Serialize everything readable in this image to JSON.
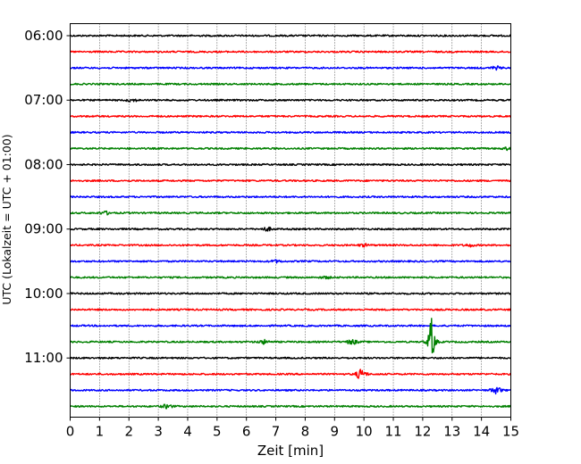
{
  "chart_data": {
    "type": "line",
    "title": "",
    "xlabel": "Zeit  [min]",
    "ylabel": "UTC (Lokalzeit = UTC + 01:00)",
    "xlim": [
      0,
      15
    ],
    "x_ticks": [
      0,
      1,
      2,
      3,
      4,
      5,
      6,
      7,
      8,
      9,
      10,
      11,
      12,
      13,
      14,
      15
    ],
    "y_tick_labels": [
      "06:00",
      "07:00",
      "08:00",
      "09:00",
      "10:00",
      "11:00"
    ],
    "grid": "vertical dotted at each minute",
    "trace_colors": [
      "#000000",
      "#ff0000",
      "#0000ff",
      "#008000"
    ],
    "traces": [
      {
        "start": "06:00",
        "events": []
      },
      {
        "start": "06:15",
        "events": []
      },
      {
        "start": "06:30",
        "events": [
          {
            "t": 14.5,
            "amp": 0.3
          }
        ]
      },
      {
        "start": "06:45",
        "events": []
      },
      {
        "start": "07:00",
        "events": [
          {
            "t": 2.1,
            "amp": 0.3
          }
        ]
      },
      {
        "start": "07:15",
        "events": []
      },
      {
        "start": "07:30",
        "events": []
      },
      {
        "start": "07:45",
        "events": [
          {
            "t": 14.9,
            "amp": 0.25
          }
        ]
      },
      {
        "start": "08:00",
        "events": []
      },
      {
        "start": "08:15",
        "events": []
      },
      {
        "start": "08:30",
        "events": []
      },
      {
        "start": "08:45",
        "events": [
          {
            "t": 1.2,
            "amp": 0.3
          }
        ]
      },
      {
        "start": "09:00",
        "events": [
          {
            "t": 6.7,
            "amp": 0.35
          }
        ]
      },
      {
        "start": "09:15",
        "events": [
          {
            "t": 10.0,
            "amp": 0.25
          },
          {
            "t": 13.6,
            "amp": 0.25
          }
        ]
      },
      {
        "start": "09:30",
        "events": [
          {
            "t": 7.0,
            "amp": 0.25
          }
        ]
      },
      {
        "start": "09:45",
        "events": [
          {
            "t": 8.7,
            "amp": 0.2
          }
        ]
      },
      {
        "start": "10:00",
        "events": []
      },
      {
        "start": "10:15",
        "events": []
      },
      {
        "start": "10:30",
        "events": []
      },
      {
        "start": "10:45",
        "events": [
          {
            "t": 6.6,
            "amp": 0.4
          },
          {
            "t": 9.6,
            "amp": 0.5
          },
          {
            "t": 12.3,
            "amp": 4.0
          },
          {
            "t": 12.3,
            "amp": 1.1
          }
        ]
      },
      {
        "start": "11:00",
        "events": []
      },
      {
        "start": "11:15",
        "events": [
          {
            "t": 9.9,
            "amp": 1.0
          }
        ]
      },
      {
        "start": "11:30",
        "events": [
          {
            "t": 14.5,
            "amp": 0.7
          }
        ]
      },
      {
        "start": "11:45",
        "events": [
          {
            "t": 3.3,
            "amp": 0.4
          }
        ]
      }
    ]
  }
}
